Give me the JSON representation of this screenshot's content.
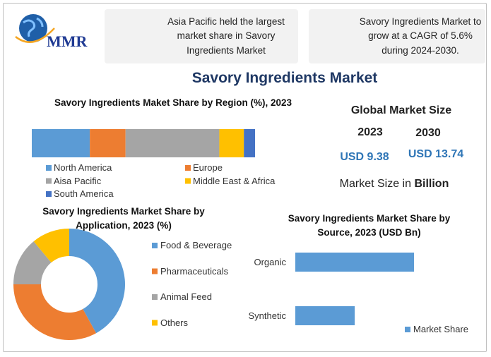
{
  "header": {
    "logo": "MMR",
    "callouts": [
      "Asia Pacific held the largest market share in Savory Ingredients Market",
      "Savory Ingredients Market to grow at a CAGR of 5.6% during 2024-2030."
    ],
    "title": "Savory Ingredients Market"
  },
  "market_size": {
    "title": "Global Market Size",
    "years": [
      "2023",
      "2030"
    ],
    "values": [
      "USD 9.38",
      "USD 13.74"
    ],
    "note": "Market Size in",
    "unit": "Billion"
  },
  "chart_data": [
    {
      "type": "stacked-bar",
      "title": "Savory Ingredients Maket Share by Region (%), 2023",
      "series": [
        {
          "name": "North America",
          "color": "#5b9bd5",
          "values": [
            26
          ]
        },
        {
          "name": "Europe",
          "color": "#ed7d31",
          "values": [
            16
          ]
        },
        {
          "name": "Aisa Pacific",
          "color": "#a5a5a5",
          "values": [
            42
          ]
        },
        {
          "name": "Middle East & Africa",
          "color": "#ffc000",
          "values": [
            11
          ]
        },
        {
          "name": "South America",
          "color": "#4472c4",
          "values": [
            5
          ]
        }
      ]
    },
    {
      "type": "pie",
      "donut": true,
      "title": "Savory Ingredients Market Share by Application, 2023 (%)",
      "categories": [
        "Food & Beverage",
        "Pharmaceuticals",
        "Animal Feed",
        "Others"
      ],
      "values": [
        42,
        33,
        14,
        11
      ],
      "colors": [
        "#5b9bd5",
        "#ed7d31",
        "#a5a5a5",
        "#ffc000"
      ]
    },
    {
      "type": "bar",
      "orientation": "horizontal",
      "title": "Savory Ingredients Market Share by Source, 2023 (USD Bn)",
      "categories": [
        "Organic",
        "Synthetic"
      ],
      "series": [
        {
          "name": "Market Share",
          "color": "#5b9bd5",
          "values": [
            6.25,
            3.13
          ]
        }
      ]
    }
  ]
}
